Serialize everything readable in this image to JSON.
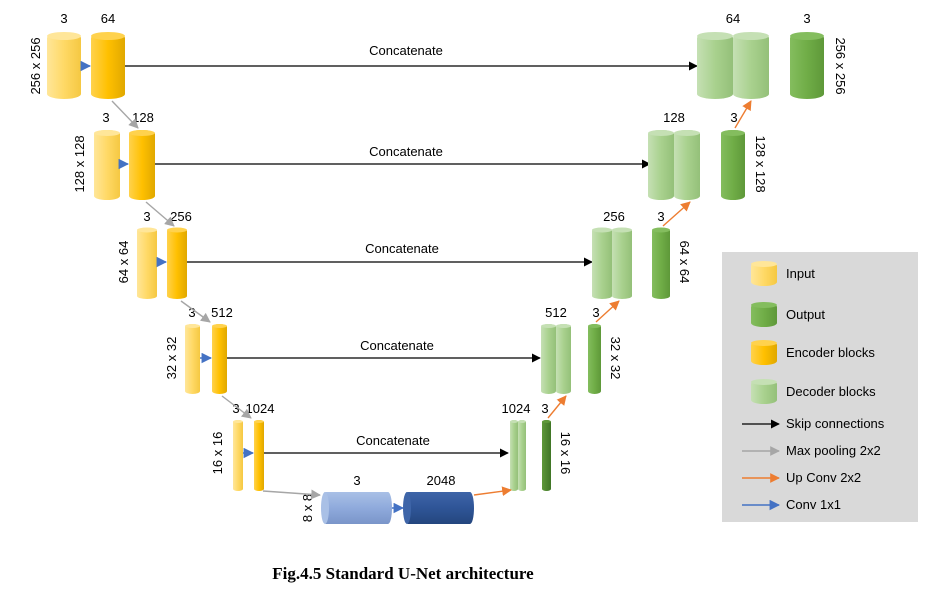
{
  "diagram": {
    "skip_label": "Concatenate",
    "levels": [
      {
        "res": "256 x 256",
        "in_ch": "3",
        "enc_ch": "64",
        "dec_ch": "64",
        "out_ch": "3"
      },
      {
        "res": "128 x 128",
        "in_ch": "3",
        "enc_ch": "128",
        "dec_ch": "128",
        "out_ch": "3"
      },
      {
        "res": "64 x 64",
        "in_ch": "3",
        "enc_ch": "256",
        "dec_ch": "256",
        "out_ch": "3"
      },
      {
        "res": "32 x 32",
        "in_ch": "3",
        "enc_ch": "512",
        "dec_ch": "512",
        "out_ch": "3"
      },
      {
        "res": "16 x 16",
        "in_ch": "3",
        "enc_ch": "1024",
        "dec_ch": "1024",
        "out_ch": "3"
      }
    ],
    "bottleneck": {
      "res": "8 x 8",
      "in_ch": "3",
      "out_ch": "2048"
    }
  },
  "legend": {
    "input": "Input",
    "output": "Output",
    "encoder": "Encoder blocks",
    "decoder": "Decoder blocks",
    "skip": "Skip connections",
    "maxpool": "Max pooling 2x2",
    "upconv": "Up Conv 2x2",
    "conv": "Conv 1x1"
  },
  "caption": "Fig.4.5 Standard U-Net architecture",
  "colors": {
    "input": "#FFD966",
    "encoder": "#FFC000",
    "decoder": "#A9D18E",
    "output": "#70AD47",
    "bottleneck_in": "#8FAADC",
    "bottleneck_out": "#2F5597",
    "skip": "#000000",
    "maxpool": "#A6A6A6",
    "upconv": "#ED7D31",
    "conv": "#4472C4",
    "legend_bg": "#D9D9D9"
  }
}
